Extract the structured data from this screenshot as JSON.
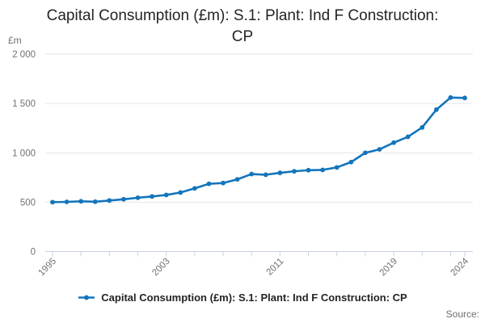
{
  "header": {
    "title_line1": "Capital Consumption (£m): S.1: Plant: Ind F Construction:",
    "title_line2": "CP"
  },
  "y_axis": {
    "unit": "£m"
  },
  "legend": {
    "label": "Capital Consumption (£m): S.1: Plant: Ind F Construction: CP"
  },
  "footer": {
    "source_label": "Source:"
  },
  "colors": {
    "accent": "#1375bc",
    "grid": "#e6e6e6",
    "axis": "#c8d3e0",
    "text": "#242424",
    "muted_text": "#707070"
  },
  "chart_data": {
    "type": "line",
    "title": "Capital Consumption (£m): S.1: Plant: Ind F Construction: CP",
    "series_name": "Capital Consumption (£m): S.1: Plant: Ind F Construction: CP",
    "ylabel": "£m",
    "xlabel": "",
    "ylim": [
      0,
      2000
    ],
    "y_gridlines": [
      0,
      500,
      1000,
      1500,
      2000
    ],
    "y_tick_labels": [
      "0",
      "500",
      "1 000",
      "1 500",
      "2 000"
    ],
    "x_tick_interval": 2,
    "labeled_x_ticks": [
      1995,
      2003,
      2011,
      2019,
      2024
    ],
    "grid": true,
    "legend_position": "bottom",
    "marker": "circle",
    "x": [
      1995,
      1996,
      1997,
      1998,
      1999,
      2000,
      2001,
      2002,
      2003,
      2004,
      2005,
      2006,
      2007,
      2008,
      2009,
      2010,
      2011,
      2012,
      2013,
      2014,
      2015,
      2016,
      2017,
      2018,
      2019,
      2020,
      2021,
      2022,
      2023,
      2024
    ],
    "values": [
      500,
      503,
      509,
      505,
      517,
      529,
      545,
      558,
      573,
      598,
      640,
      686,
      694,
      731,
      785,
      778,
      797,
      813,
      824,
      827,
      852,
      906,
      1000,
      1035,
      1103,
      1162,
      1257,
      1437,
      1560,
      1556
    ]
  }
}
